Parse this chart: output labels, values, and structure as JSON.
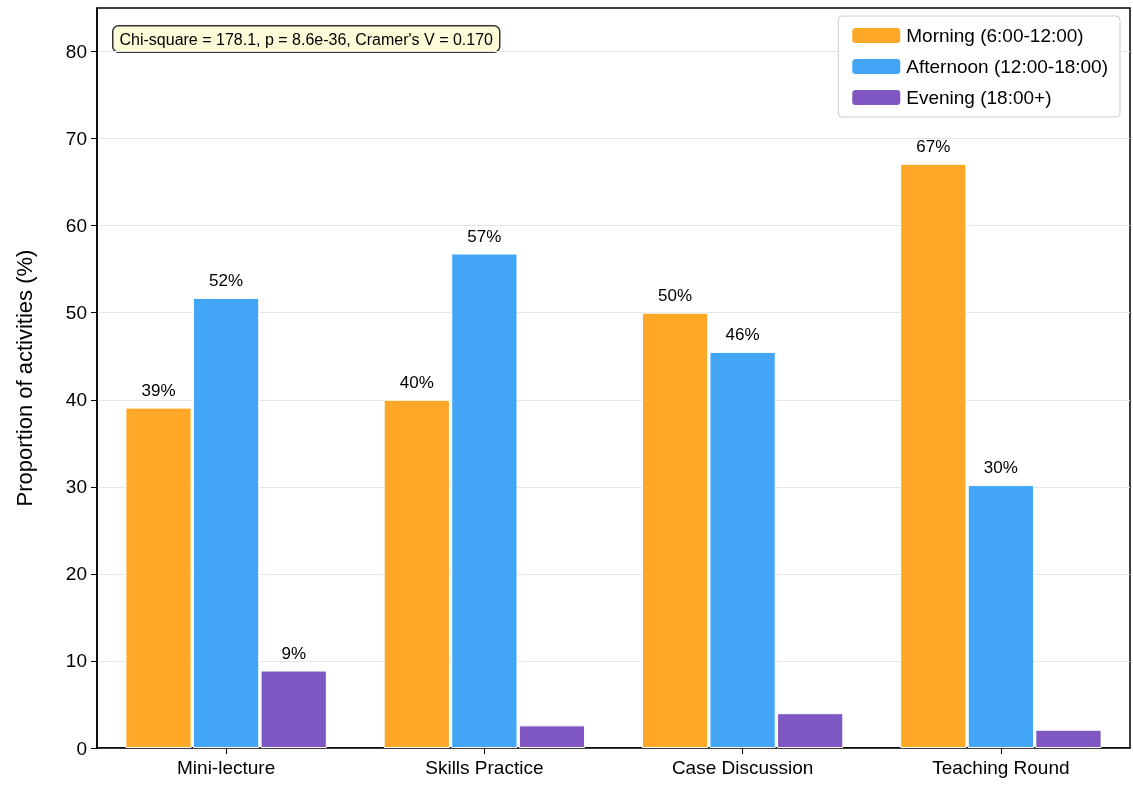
{
  "chart_data": {
    "type": "bar",
    "ylabel": "Proportion of activities (%)",
    "categories": [
      "Mini-lecture",
      "Skills Practice",
      "Case Discussion",
      "Teaching Round"
    ],
    "series": [
      {
        "name": "Morning (6:00-12:00)",
        "color": "#ffa726",
        "values": [
          39.1,
          40.0,
          50.0,
          67.1
        ],
        "value_labels": [
          "39%",
          "40%",
          "50%",
          "67%"
        ]
      },
      {
        "name": "Afternoon (12:00-18:00)",
        "color": "#42a5f5",
        "values": [
          51.7,
          56.8,
          45.5,
          30.2
        ],
        "value_labels": [
          "52%",
          "57%",
          "46%",
          "30%"
        ]
      },
      {
        "name": "Evening (18:00+)",
        "color": "#7e57c2",
        "values": [
          8.9,
          2.6,
          4.0,
          2.1
        ],
        "value_labels": [
          "9%",
          null,
          null,
          null
        ]
      }
    ],
    "ylim": [
      0,
      85
    ],
    "yticks": [
      0,
      10,
      20,
      30,
      40,
      50,
      60,
      70,
      80
    ],
    "grid": "y",
    "legend": "top right",
    "annotations": [
      "Chi-square = 178.1, p = 8.6e-36, Cramer's V = 0.170"
    ]
  }
}
